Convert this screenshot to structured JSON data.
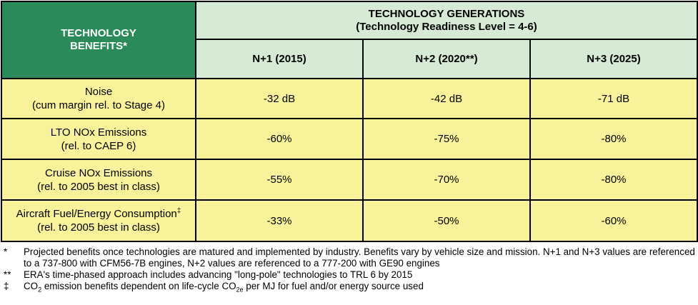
{
  "table": {
    "corner_line1": "TECHNOLOGY",
    "corner_line2": "BENEFITS*",
    "generations_title": "TECHNOLOGY GENERATIONS",
    "generations_subtitle": "(Technology Readiness Level = 4-6)",
    "columns": [
      "N+1 (2015)",
      "N+2 (2020**)",
      "N+3 (2025)"
    ],
    "rows": [
      {
        "label": "Noise",
        "sublabel": "(cum margin rel. to Stage 4)",
        "mark": "",
        "values": [
          "-32 dB",
          "-42 dB",
          "-71 dB"
        ]
      },
      {
        "label": "LTO NOx Emissions",
        "sublabel": "(rel. to CAEP 6)",
        "mark": "",
        "values": [
          "-60%",
          "-75%",
          "-80%"
        ]
      },
      {
        "label": "Cruise NOx Emissions",
        "sublabel": "(rel. to 2005 best in class)",
        "mark": "",
        "values": [
          "-55%",
          "-70%",
          "-80%"
        ]
      },
      {
        "label": "Aircraft Fuel/Energy Consumption",
        "sublabel": "(rel. to 2005 best in class)",
        "mark": "‡",
        "values": [
          "-33%",
          "-50%",
          "-60%"
        ]
      }
    ]
  },
  "footnotes": {
    "n1_mark": "*",
    "n1_text": "Projected benefits once technologies are matured and implemented by industry. Benefits vary by vehicle size and mission. N+1 and N+3 values are referenced to a 737-800 with CFM56-7B engines, N+2 values are referenced to a 777-200 with GE90 engines",
    "n2_mark": "**",
    "n2_text": "ERA's time-phased approach includes advancing \"long-pole\" technologies to TRL 6 by 2015",
    "n3_mark": "‡",
    "n3_part1": "CO",
    "n3_sub1": "2",
    "n3_part2": " emission benefits dependent on life-cycle CO",
    "n3_sub2": "2e",
    "n3_part3": " per MJ for fuel and/or energy source used"
  },
  "colors": {
    "corner_bg": "#2a8a5a",
    "header_bg": "#d6ead6",
    "body_bg": "#f8f39a"
  }
}
